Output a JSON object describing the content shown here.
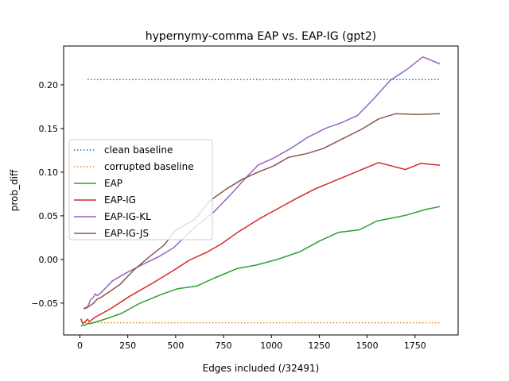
{
  "chart_data": {
    "type": "line",
    "title": "hypernymy-comma EAP vs. EAP-IG (gpt2)",
    "xlabel": "Edges included (/32491)",
    "ylabel": "prob_diff",
    "xlim": [
      -85,
      1975
    ],
    "ylim": [
      -0.0865,
      0.2445
    ],
    "xticks": [
      0,
      250,
      500,
      750,
      1000,
      1250,
      1500,
      1750
    ],
    "xtick_labels": [
      "0",
      "250",
      "500",
      "750",
      "1000",
      "1250",
      "1500",
      "1750"
    ],
    "yticks": [
      -0.05,
      0.0,
      0.05,
      0.1,
      0.15,
      0.2
    ],
    "ytick_labels": [
      "−0.05",
      "0.00",
      "0.05",
      "0.10",
      "0.15",
      "0.20"
    ],
    "grid": false,
    "legend_position": "center-left",
    "series": [
      {
        "name": "clean baseline",
        "color": "#1f77b4",
        "style": "dotted",
        "points": [
          [
            40,
            0.206
          ],
          [
            1885,
            0.206
          ]
        ]
      },
      {
        "name": "corrupted baseline",
        "color": "#ff7f0e",
        "style": "dotted",
        "points": [
          [
            10,
            -0.0725
          ],
          [
            1885,
            -0.0725
          ]
        ]
      },
      {
        "name": "EAP",
        "color": "#2ca02c",
        "style": "solid",
        "points": [
          [
            5,
            -0.0765
          ],
          [
            15,
            -0.075
          ],
          [
            25,
            -0.0755
          ],
          [
            40,
            -0.0735
          ],
          [
            55,
            -0.0735
          ],
          [
            70,
            -0.0725
          ],
          [
            100,
            -0.0705
          ],
          [
            150,
            -0.067
          ],
          [
            220,
            -0.0615
          ],
          [
            310,
            -0.0505
          ],
          [
            420,
            -0.0405
          ],
          [
            510,
            -0.0335
          ],
          [
            610,
            -0.0305
          ],
          [
            700,
            -0.0215
          ],
          [
            820,
            -0.0105
          ],
          [
            920,
            -0.0065
          ],
          [
            1030,
            0.0
          ],
          [
            1150,
            0.009
          ],
          [
            1250,
            0.021
          ],
          [
            1350,
            0.031
          ],
          [
            1460,
            0.034
          ],
          [
            1550,
            0.044
          ],
          [
            1700,
            0.0505
          ],
          [
            1810,
            0.0575
          ],
          [
            1880,
            0.0605
          ]
        ]
      },
      {
        "name": "EAP-IG",
        "color": "#d62728",
        "style": "solid",
        "points": [
          [
            5,
            -0.068
          ],
          [
            15,
            -0.0735
          ],
          [
            25,
            -0.0715
          ],
          [
            35,
            -0.0695
          ],
          [
            40,
            -0.0685
          ],
          [
            50,
            -0.0715
          ],
          [
            60,
            -0.0695
          ],
          [
            80,
            -0.066
          ],
          [
            110,
            -0.0625
          ],
          [
            160,
            -0.0565
          ],
          [
            250,
            -0.0435
          ],
          [
            380,
            -0.027
          ],
          [
            500,
            -0.011
          ],
          [
            570,
            -0.001
          ],
          [
            660,
            0.008
          ],
          [
            740,
            0.018
          ],
          [
            830,
            0.032
          ],
          [
            940,
            0.047
          ],
          [
            1040,
            0.059
          ],
          [
            1140,
            0.071
          ],
          [
            1230,
            0.081
          ],
          [
            1340,
            0.091
          ],
          [
            1450,
            0.101
          ],
          [
            1560,
            0.111
          ],
          [
            1700,
            0.103
          ],
          [
            1780,
            0.11
          ],
          [
            1880,
            0.108
          ]
        ]
      },
      {
        "name": "EAP-IG-KL",
        "color": "#9467bd",
        "style": "solid",
        "points": [
          [
            20,
            -0.0565
          ],
          [
            30,
            -0.055
          ],
          [
            40,
            -0.0545
          ],
          [
            55,
            -0.0465
          ],
          [
            70,
            -0.0435
          ],
          [
            80,
            -0.0395
          ],
          [
            90,
            -0.0415
          ],
          [
            110,
            -0.038
          ],
          [
            170,
            -0.0245
          ],
          [
            250,
            -0.0145
          ],
          [
            330,
            -0.0055
          ],
          [
            410,
            0.003
          ],
          [
            490,
            0.0135
          ],
          [
            560,
            0.0285
          ],
          [
            620,
            0.0405
          ],
          [
            700,
            0.0545
          ],
          [
            790,
            0.075
          ],
          [
            860,
            0.092
          ],
          [
            930,
            0.108
          ],
          [
            1010,
            0.116
          ],
          [
            1100,
            0.127
          ],
          [
            1190,
            0.14
          ],
          [
            1280,
            0.15
          ],
          [
            1370,
            0.157
          ],
          [
            1450,
            0.165
          ],
          [
            1530,
            0.183
          ],
          [
            1620,
            0.205
          ],
          [
            1710,
            0.218
          ],
          [
            1790,
            0.232
          ],
          [
            1880,
            0.224
          ]
        ]
      },
      {
        "name": "EAP-IG-JS",
        "color": "#8c564b",
        "style": "solid",
        "points": [
          [
            20,
            -0.0565
          ],
          [
            35,
            -0.0555
          ],
          [
            55,
            -0.0525
          ],
          [
            70,
            -0.0505
          ],
          [
            90,
            -0.0455
          ],
          [
            110,
            -0.0435
          ],
          [
            150,
            -0.0375
          ],
          [
            210,
            -0.0285
          ],
          [
            280,
            -0.0125
          ],
          [
            360,
            0.0025
          ],
          [
            440,
            0.0165
          ],
          [
            500,
            0.0335
          ],
          [
            600,
            0.046
          ],
          [
            680,
            0.0675
          ],
          [
            770,
            0.0815
          ],
          [
            850,
            0.092
          ],
          [
            930,
            0.1
          ],
          [
            1010,
            0.107
          ],
          [
            1090,
            0.117
          ],
          [
            1180,
            0.121
          ],
          [
            1270,
            0.127
          ],
          [
            1370,
            0.138
          ],
          [
            1470,
            0.149
          ],
          [
            1560,
            0.161
          ],
          [
            1650,
            0.167
          ],
          [
            1760,
            0.166
          ],
          [
            1880,
            0.167
          ]
        ]
      }
    ]
  }
}
